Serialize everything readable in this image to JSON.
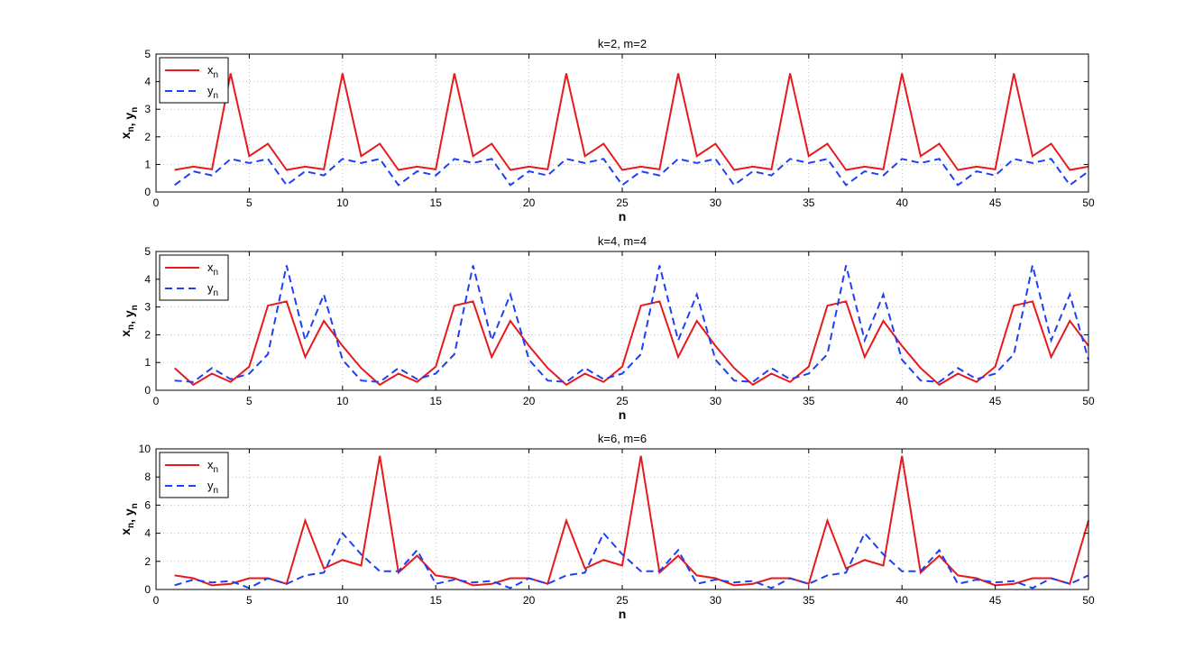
{
  "figure": {
    "background": "#ffffff"
  },
  "colors": {
    "x_series": "#e8191c",
    "y_series": "#1f3ff2",
    "grid": "#9a9a9a",
    "axes": "#000000"
  },
  "chart_data": [
    {
      "type": "line",
      "title": "k=2, m=2",
      "xlabel": "n",
      "ylabel": "x_n, y_n",
      "xlim": [
        0,
        50
      ],
      "ylim": [
        0,
        5
      ],
      "xticks": [
        0,
        5,
        10,
        15,
        20,
        25,
        30,
        35,
        40,
        45,
        50
      ],
      "yticks": [
        0,
        1,
        2,
        3,
        4,
        5
      ],
      "grid": true,
      "legend": "top-left",
      "x": [
        1,
        2,
        3,
        4,
        5,
        6,
        7,
        8,
        9,
        10,
        11,
        12,
        13,
        14,
        15,
        16,
        17,
        18,
        19,
        20,
        21,
        22,
        23,
        24,
        25,
        26,
        27,
        28,
        29,
        30,
        31,
        32,
        33,
        34,
        35,
        36,
        37,
        38,
        39,
        40,
        41,
        42,
        43,
        44,
        45,
        46,
        47,
        48,
        49,
        50
      ],
      "series": [
        {
          "name": "x",
          "sub": "n",
          "style": "solid",
          "values": [
            0.8,
            0.92,
            0.82,
            4.3,
            1.3,
            1.75,
            0.8,
            0.92,
            0.82,
            4.3,
            1.3,
            1.75,
            0.8,
            0.92,
            0.82,
            4.3,
            1.3,
            1.75,
            0.8,
            0.92,
            0.82,
            4.3,
            1.3,
            1.75,
            0.8,
            0.92,
            0.82,
            4.3,
            1.3,
            1.75,
            0.8,
            0.92,
            0.82,
            4.3,
            1.3,
            1.75,
            0.8,
            0.92,
            0.82,
            4.3,
            1.3,
            1.75,
            0.8,
            0.92,
            0.82,
            4.3,
            1.3,
            1.75,
            0.8,
            0.92
          ]
        },
        {
          "name": "y",
          "sub": "n",
          "style": "dashed",
          "values": [
            0.25,
            0.75,
            0.6,
            1.2,
            1.05,
            1.2,
            0.25,
            0.75,
            0.6,
            1.2,
            1.05,
            1.2,
            0.25,
            0.75,
            0.6,
            1.2,
            1.05,
            1.2,
            0.25,
            0.75,
            0.6,
            1.2,
            1.05,
            1.2,
            0.25,
            0.75,
            0.6,
            1.2,
            1.05,
            1.2,
            0.25,
            0.75,
            0.6,
            1.2,
            1.05,
            1.2,
            0.25,
            0.75,
            0.6,
            1.2,
            1.05,
            1.2,
            0.25,
            0.75,
            0.6,
            1.2,
            1.05,
            1.2,
            0.25,
            0.75
          ]
        }
      ]
    },
    {
      "type": "line",
      "title": "k=4, m=4",
      "xlabel": "n",
      "ylabel": "x_n, y_n",
      "xlim": [
        0,
        50
      ],
      "ylim": [
        0,
        5
      ],
      "xticks": [
        0,
        5,
        10,
        15,
        20,
        25,
        30,
        35,
        40,
        45,
        50
      ],
      "yticks": [
        0,
        1,
        2,
        3,
        4,
        5
      ],
      "grid": true,
      "legend": "top-left",
      "x": [
        1,
        2,
        3,
        4,
        5,
        6,
        7,
        8,
        9,
        10,
        11,
        12,
        13,
        14,
        15,
        16,
        17,
        18,
        19,
        20,
        21,
        22,
        23,
        24,
        25,
        26,
        27,
        28,
        29,
        30,
        31,
        32,
        33,
        34,
        35,
        36,
        37,
        38,
        39,
        40,
        41,
        42,
        43,
        44,
        45,
        46,
        47,
        48,
        49,
        50
      ],
      "series": [
        {
          "name": "x",
          "sub": "n",
          "style": "solid",
          "values": [
            0.8,
            0.2,
            0.6,
            0.3,
            0.85,
            3.05,
            3.2,
            1.2,
            2.5,
            1.6,
            0.8,
            0.2,
            0.6,
            0.3,
            0.85,
            3.05,
            3.2,
            1.2,
            2.5,
            1.6,
            0.8,
            0.2,
            0.6,
            0.3,
            0.85,
            3.05,
            3.2,
            1.2,
            2.5,
            1.6,
            0.8,
            0.2,
            0.6,
            0.3,
            0.85,
            3.05,
            3.2,
            1.2,
            2.5,
            1.6,
            0.8,
            0.2,
            0.6,
            0.3,
            0.85,
            3.05,
            3.2,
            1.2,
            2.5,
            1.6
          ]
        },
        {
          "name": "y",
          "sub": "n",
          "style": "dashed",
          "values": [
            0.35,
            0.3,
            0.8,
            0.4,
            0.6,
            1.3,
            4.5,
            1.8,
            3.45,
            1.1,
            0.35,
            0.3,
            0.8,
            0.4,
            0.6,
            1.3,
            4.5,
            1.8,
            3.45,
            1.1,
            0.35,
            0.3,
            0.8,
            0.4,
            0.6,
            1.3,
            4.5,
            1.8,
            3.45,
            1.1,
            0.35,
            0.3,
            0.8,
            0.4,
            0.6,
            1.3,
            4.5,
            1.8,
            3.45,
            1.1,
            0.35,
            0.3,
            0.8,
            0.4,
            0.6,
            1.3,
            4.5,
            1.8,
            3.45,
            1.1
          ]
        }
      ]
    },
    {
      "type": "line",
      "title": "k=6, m=6",
      "xlabel": "n",
      "ylabel": "x_n, y_n",
      "xlim": [
        0,
        50
      ],
      "ylim": [
        0,
        10
      ],
      "xticks": [
        0,
        5,
        10,
        15,
        20,
        25,
        30,
        35,
        40,
        45,
        50
      ],
      "yticks": [
        0,
        2,
        4,
        6,
        8,
        10
      ],
      "grid": true,
      "legend": "top-left",
      "x": [
        1,
        2,
        3,
        4,
        5,
        6,
        7,
        8,
        9,
        10,
        11,
        12,
        13,
        14,
        15,
        16,
        17,
        18,
        19,
        20,
        21,
        22,
        23,
        24,
        25,
        26,
        27,
        28,
        29,
        30,
        31,
        32,
        33,
        34,
        35,
        36,
        37,
        38,
        39,
        40,
        41,
        42,
        43,
        44,
        45,
        46,
        47,
        48,
        49,
        50
      ],
      "series": [
        {
          "name": "x",
          "sub": "n",
          "style": "solid",
          "values": [
            1.0,
            0.8,
            0.3,
            0.4,
            0.8,
            0.8,
            0.4,
            4.9,
            1.5,
            2.1,
            1.7,
            9.5,
            1.2,
            2.4,
            1.0,
            0.8,
            0.3,
            0.4,
            0.8,
            0.8,
            0.4,
            4.9,
            1.5,
            2.1,
            1.7,
            9.5,
            1.2,
            2.4,
            1.0,
            0.8,
            0.3,
            0.4,
            0.8,
            0.8,
            0.4,
            4.9,
            1.5,
            2.1,
            1.7,
            9.5,
            1.2,
            2.4,
            1.0,
            0.8,
            0.3,
            0.4,
            0.8,
            0.8,
            0.4,
            4.9
          ]
        },
        {
          "name": "y",
          "sub": "n",
          "style": "dashed",
          "values": [
            0.3,
            0.7,
            0.5,
            0.6,
            0.1,
            0.8,
            0.4,
            1.0,
            1.2,
            4.0,
            2.5,
            1.3,
            1.3,
            2.8,
            0.4,
            0.7,
            0.5,
            0.6,
            0.1,
            0.8,
            0.4,
            1.0,
            1.2,
            4.0,
            2.5,
            1.3,
            1.3,
            2.8,
            0.4,
            0.7,
            0.5,
            0.6,
            0.1,
            0.8,
            0.4,
            1.0,
            1.2,
            4.0,
            2.5,
            1.3,
            1.3,
            2.8,
            0.4,
            0.7,
            0.5,
            0.6,
            0.1,
            0.8,
            0.4,
            1.0
          ]
        }
      ]
    }
  ]
}
